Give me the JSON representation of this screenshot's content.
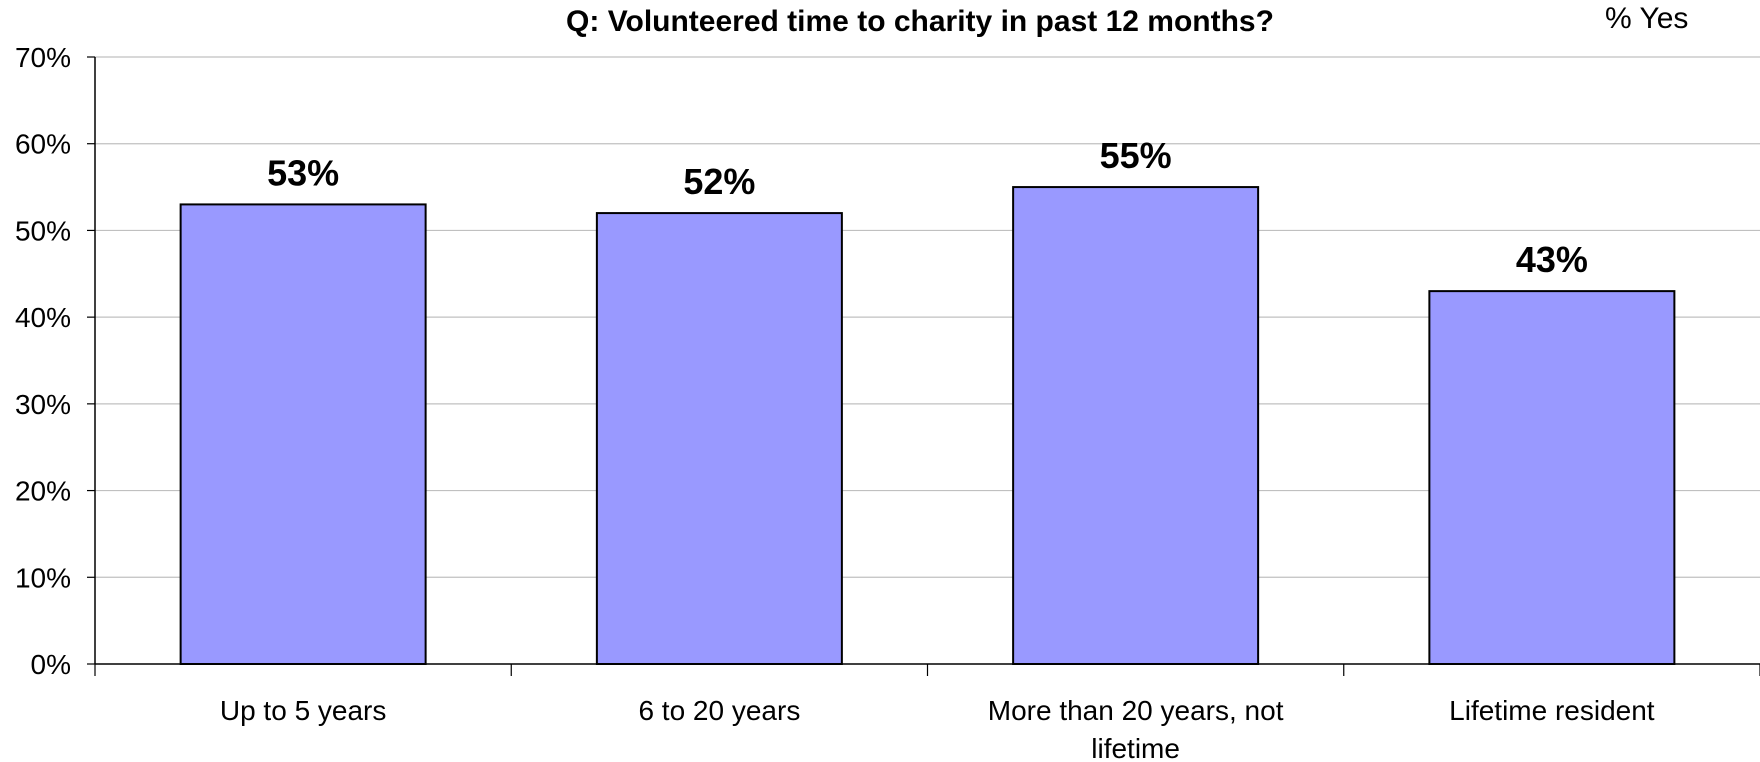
{
  "chart_data": {
    "type": "bar",
    "title": "Q: Volunteered time to charity in past 12 months?",
    "unit_label": "% Yes",
    "categories": [
      [
        "Up to 5 years"
      ],
      [
        "6 to 20 years"
      ],
      [
        "More than 20 years, not",
        "lifetime"
      ],
      [
        "Lifetime resident"
      ]
    ],
    "values": [
      53,
      52,
      55,
      43
    ],
    "data_labels": [
      "53%",
      "52%",
      "55%",
      "43%"
    ],
    "ylim": [
      0,
      70
    ],
    "yticks": [
      0,
      10,
      20,
      30,
      40,
      50,
      60,
      70
    ],
    "ytick_labels": [
      "0%",
      "10%",
      "20%",
      "30%",
      "40%",
      "50%",
      "60%",
      "70%"
    ],
    "grid": true,
    "legend": "none",
    "colors": {
      "bar": "#9999FF",
      "bar_stroke": "#000000",
      "grid": "#C0C0C0",
      "axis": "#000000"
    }
  }
}
